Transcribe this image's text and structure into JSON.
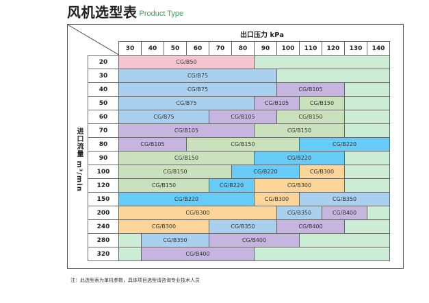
{
  "title": {
    "zh": "风机选型表",
    "en": "Product Type"
  },
  "header": {
    "pressure_label": "出口压力 kPa",
    "flow_label": "进口流量 m³/min"
  },
  "pressures": [
    "30",
    "40",
    "50",
    "60",
    "70",
    "80",
    "90",
    "100",
    "110",
    "120",
    "130",
    "140"
  ],
  "rows": [
    {
      "flow": "20",
      "cells": [
        {
          "label": "CG/B50",
          "span": 6,
          "cls": "c50"
        },
        {
          "label": "",
          "span": 6,
          "cls": "cempty"
        }
      ]
    },
    {
      "flow": "30",
      "cells": [
        {
          "label": "CG/B75",
          "span": 7,
          "cls": "c75"
        },
        {
          "label": "",
          "span": 5,
          "cls": "cempty"
        }
      ]
    },
    {
      "flow": "40",
      "cells": [
        {
          "label": "CG/B75",
          "span": 7,
          "cls": "c75"
        },
        {
          "label": "CG/B105",
          "span": 3,
          "cls": "c105"
        },
        {
          "label": "",
          "span": 2,
          "cls": "cempty"
        }
      ]
    },
    {
      "flow": "50",
      "cells": [
        {
          "label": "CG/B75",
          "span": 6,
          "cls": "c75"
        },
        {
          "label": "CG/B105",
          "span": 2,
          "cls": "c105"
        },
        {
          "label": "CG/B150",
          "span": 2,
          "cls": "c150"
        },
        {
          "label": "",
          "span": 2,
          "cls": "cempty"
        }
      ]
    },
    {
      "flow": "60",
      "cells": [
        {
          "label": "CG/B75",
          "span": 4,
          "cls": "c75"
        },
        {
          "label": "CG/B105",
          "span": 3,
          "cls": "c105"
        },
        {
          "label": "CG/B150",
          "span": 3,
          "cls": "c150"
        },
        {
          "label": "",
          "span": 2,
          "cls": "cempty"
        }
      ]
    },
    {
      "flow": "70",
      "cells": [
        {
          "label": "CG/B105",
          "span": 6,
          "cls": "c105"
        },
        {
          "label": "CG/B150",
          "span": 4,
          "cls": "c150"
        },
        {
          "label": "",
          "span": 2,
          "cls": "cempty"
        }
      ]
    },
    {
      "flow": "80",
      "cells": [
        {
          "label": "CG/B105",
          "span": 3,
          "cls": "c105"
        },
        {
          "label": "CG/B150",
          "span": 5,
          "cls": "c150"
        },
        {
          "label": "CG/B220",
          "span": 4,
          "cls": "c220"
        }
      ]
    },
    {
      "flow": "90",
      "cells": [
        {
          "label": "CG/B150",
          "span": 6,
          "cls": "c150"
        },
        {
          "label": "CG/B220",
          "span": 4,
          "cls": "c220"
        },
        {
          "label": "",
          "span": 2,
          "cls": "cempty"
        }
      ]
    },
    {
      "flow": "100",
      "cells": [
        {
          "label": "CG/B150",
          "span": 5,
          "cls": "c150"
        },
        {
          "label": "CG/B220",
          "span": 3,
          "cls": "c220"
        },
        {
          "label": "CG/B300",
          "span": 2,
          "cls": "c300"
        },
        {
          "label": "",
          "span": 2,
          "cls": "cempty"
        }
      ]
    },
    {
      "flow": "120",
      "cells": [
        {
          "label": "CG/B150",
          "span": 4,
          "cls": "c150"
        },
        {
          "label": "CG/B220",
          "span": 2,
          "cls": "c220"
        },
        {
          "label": "CG/B300",
          "span": 4,
          "cls": "c300"
        },
        {
          "label": "",
          "span": 2,
          "cls": "cempty"
        }
      ]
    },
    {
      "flow": "150",
      "cells": [
        {
          "label": "CG/B220",
          "span": 6,
          "cls": "c220"
        },
        {
          "label": "CG/B300",
          "span": 2,
          "cls": "c300"
        },
        {
          "label": "CG/B350",
          "span": 4,
          "cls": "c350"
        }
      ]
    },
    {
      "flow": "200",
      "cells": [
        {
          "label": "CG/B300",
          "span": 7,
          "cls": "c300"
        },
        {
          "label": "CG/B350",
          "span": 2,
          "cls": "c350"
        },
        {
          "label": "CG/B400",
          "span": 2,
          "cls": "c400"
        },
        {
          "label": "",
          "span": 1,
          "cls": "cempty"
        }
      ]
    },
    {
      "flow": "240",
      "cells": [
        {
          "label": "CG/B300",
          "span": 4,
          "cls": "c300"
        },
        {
          "label": "CG/B350",
          "span": 3,
          "cls": "c350"
        },
        {
          "label": "CG/B400",
          "span": 3,
          "cls": "c400"
        },
        {
          "label": "",
          "span": 2,
          "cls": "cempty"
        }
      ]
    },
    {
      "flow": "280",
      "cells": [
        {
          "label": "",
          "span": 1,
          "cls": "cempty"
        },
        {
          "label": "CG/B350",
          "span": 3,
          "cls": "c350"
        },
        {
          "label": "CG/B400",
          "span": 4,
          "cls": "c400"
        },
        {
          "label": "",
          "span": 4,
          "cls": "cempty"
        }
      ]
    },
    {
      "flow": "320",
      "cells": [
        {
          "label": "",
          "span": 1,
          "cls": "cempty"
        },
        {
          "label": "CG/B400",
          "span": 5,
          "cls": "c400"
        },
        {
          "label": "",
          "span": 6,
          "cls": "cempty"
        }
      ]
    }
  ],
  "note": "注：此选型表为单机参数，具体项目选型请咨询专业技术人员"
}
